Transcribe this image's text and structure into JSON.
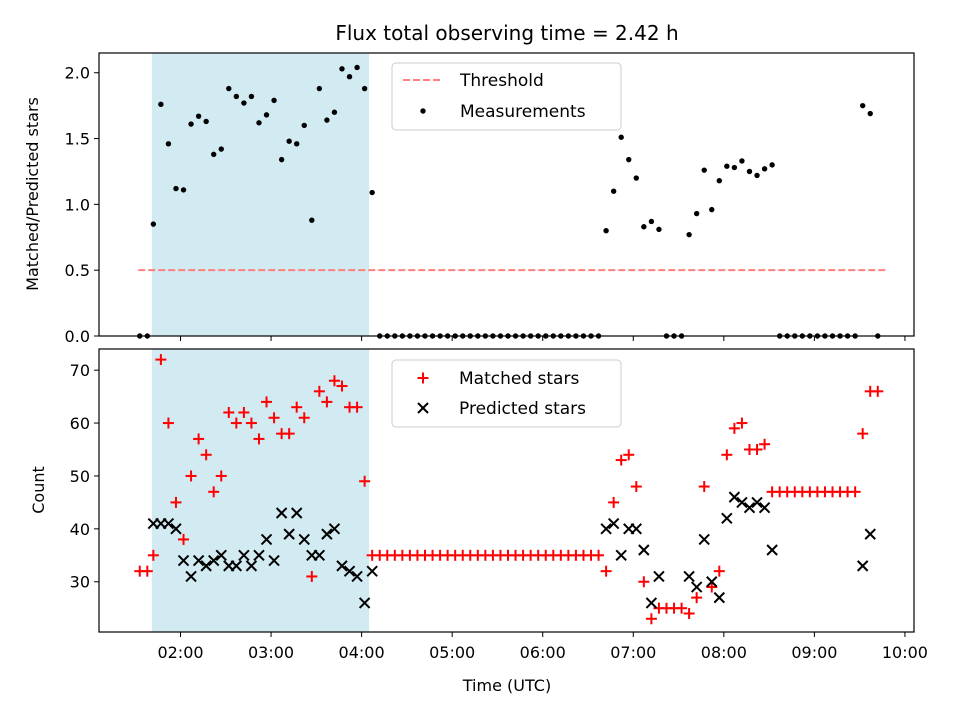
{
  "title": "Flux total observing time = 2.42 h",
  "xlabel": "Time (UTC)",
  "xticks": [
    "02:00",
    "03:00",
    "04:00",
    "05:00",
    "06:00",
    "07:00",
    "08:00",
    "09:00",
    "10:00"
  ],
  "colors": {
    "span": "#add8e6",
    "threshold": "#ff7f7f",
    "measurements": "#000000",
    "matched": "#ff0000",
    "predicted": "#000000"
  },
  "chart_data": [
    {
      "type": "scatter",
      "ylabel": "Matched/Predicted stars",
      "yticks": [
        "0.0",
        "0.5",
        "1.0",
        "1.5",
        "2.0"
      ],
      "xlim": [
        "01:06",
        "10:06"
      ],
      "ylim": [
        0,
        2.15
      ],
      "highlight_span": [
        "01:41",
        "04:05"
      ],
      "legend_position": "top-center",
      "legend": [
        "Threshold",
        "Measurements"
      ],
      "threshold": {
        "name": "Threshold",
        "style": "dashed",
        "x": [
          "01:32",
          "09:48"
        ],
        "y": 0.5
      },
      "series": [
        {
          "name": "Measurements",
          "points": [
            [
              "01:33",
              0
            ],
            [
              "01:38",
              0
            ],
            [
              "01:42",
              0.85
            ],
            [
              "01:47",
              1.76
            ],
            [
              "01:52",
              1.46
            ],
            [
              "01:57",
              1.12
            ],
            [
              "02:02",
              1.11
            ],
            [
              "02:07",
              1.61
            ],
            [
              "02:12",
              1.67
            ],
            [
              "02:17",
              1.63
            ],
            [
              "02:22",
              1.38
            ],
            [
              "02:27",
              1.42
            ],
            [
              "02:32",
              1.88
            ],
            [
              "02:37",
              1.82
            ],
            [
              "02:42",
              1.77
            ],
            [
              "02:47",
              1.82
            ],
            [
              "02:52",
              1.62
            ],
            [
              "02:57",
              1.68
            ],
            [
              "03:02",
              1.79
            ],
            [
              "03:07",
              1.34
            ],
            [
              "03:12",
              1.48
            ],
            [
              "03:17",
              1.46
            ],
            [
              "03:22",
              1.6
            ],
            [
              "03:27",
              0.88
            ],
            [
              "03:32",
              1.88
            ],
            [
              "03:37",
              1.64
            ],
            [
              "03:42",
              1.7
            ],
            [
              "03:47",
              2.03
            ],
            [
              "03:52",
              1.97
            ],
            [
              "03:57",
              2.04
            ],
            [
              "04:02",
              1.88
            ],
            [
              "04:07",
              1.09
            ],
            [
              "04:12",
              0
            ],
            [
              "04:17",
              0
            ],
            [
              "04:22",
              0
            ],
            [
              "04:27",
              0
            ],
            [
              "04:32",
              0
            ],
            [
              "04:37",
              0
            ],
            [
              "04:42",
              0
            ],
            [
              "04:47",
              0
            ],
            [
              "04:52",
              0
            ],
            [
              "04:57",
              0
            ],
            [
              "05:02",
              0
            ],
            [
              "05:07",
              0
            ],
            [
              "05:12",
              0
            ],
            [
              "05:17",
              0
            ],
            [
              "05:22",
              0
            ],
            [
              "05:27",
              0
            ],
            [
              "05:32",
              0
            ],
            [
              "05:37",
              0
            ],
            [
              "05:42",
              0
            ],
            [
              "05:47",
              0
            ],
            [
              "05:52",
              0
            ],
            [
              "05:57",
              0
            ],
            [
              "06:02",
              0
            ],
            [
              "06:07",
              0
            ],
            [
              "06:12",
              0
            ],
            [
              "06:17",
              0
            ],
            [
              "06:22",
              0
            ],
            [
              "06:27",
              0
            ],
            [
              "06:32",
              0
            ],
            [
              "06:37",
              0
            ],
            [
              "06:42",
              0.8
            ],
            [
              "06:47",
              1.1
            ],
            [
              "06:52",
              1.51
            ],
            [
              "06:57",
              1.34
            ],
            [
              "07:02",
              1.2
            ],
            [
              "07:07",
              0.83
            ],
            [
              "07:12",
              0.87
            ],
            [
              "07:17",
              0.81
            ],
            [
              "07:22",
              0
            ],
            [
              "07:27",
              0
            ],
            [
              "07:32",
              0
            ],
            [
              "07:37",
              0.77
            ],
            [
              "07:42",
              0.93
            ],
            [
              "07:47",
              1.26
            ],
            [
              "07:52",
              0.96
            ],
            [
              "07:57",
              1.18
            ],
            [
              "08:02",
              1.29
            ],
            [
              "08:07",
              1.28
            ],
            [
              "08:12",
              1.33
            ],
            [
              "08:17",
              1.25
            ],
            [
              "08:22",
              1.22
            ],
            [
              "08:27",
              1.27
            ],
            [
              "08:32",
              1.3
            ],
            [
              "08:37",
              0
            ],
            [
              "08:42",
              0
            ],
            [
              "08:47",
              0
            ],
            [
              "08:52",
              0
            ],
            [
              "08:57",
              0
            ],
            [
              "09:02",
              0
            ],
            [
              "09:07",
              0
            ],
            [
              "09:12",
              0
            ],
            [
              "09:17",
              0
            ],
            [
              "09:22",
              0
            ],
            [
              "09:27",
              0
            ],
            [
              "09:32",
              1.75
            ],
            [
              "09:37",
              1.69
            ],
            [
              "09:42",
              0
            ]
          ]
        }
      ]
    },
    {
      "type": "scatter",
      "ylabel": "Count",
      "yticks": [
        "30",
        "40",
        "50",
        "60",
        "70"
      ],
      "xlim": [
        "01:06",
        "10:06"
      ],
      "ylim": [
        20.5,
        74
      ],
      "highlight_span": [
        "01:41",
        "04:05"
      ],
      "legend_position": "top-center",
      "legend": [
        "Matched stars",
        "Predicted stars"
      ],
      "series": [
        {
          "name": "Matched stars",
          "marker": "+",
          "points": [
            [
              "01:33",
              32
            ],
            [
              "01:38",
              32
            ],
            [
              "01:42",
              35
            ],
            [
              "01:47",
              72
            ],
            [
              "01:52",
              60
            ],
            [
              "01:57",
              45
            ],
            [
              "02:02",
              38
            ],
            [
              "02:07",
              50
            ],
            [
              "02:12",
              57
            ],
            [
              "02:17",
              54
            ],
            [
              "02:22",
              47
            ],
            [
              "02:27",
              50
            ],
            [
              "02:32",
              62
            ],
            [
              "02:37",
              60
            ],
            [
              "02:42",
              62
            ],
            [
              "02:47",
              60
            ],
            [
              "02:52",
              57
            ],
            [
              "02:57",
              64
            ],
            [
              "03:02",
              61
            ],
            [
              "03:07",
              58
            ],
            [
              "03:12",
              58
            ],
            [
              "03:17",
              63
            ],
            [
              "03:22",
              61
            ],
            [
              "03:27",
              31
            ],
            [
              "03:32",
              66
            ],
            [
              "03:37",
              64
            ],
            [
              "03:42",
              68
            ],
            [
              "03:47",
              67
            ],
            [
              "03:52",
              63
            ],
            [
              "03:57",
              63
            ],
            [
              "04:02",
              49
            ],
            [
              "04:07",
              35
            ],
            [
              "04:12",
              35
            ],
            [
              "04:17",
              35
            ],
            [
              "04:22",
              35
            ],
            [
              "04:27",
              35
            ],
            [
              "04:32",
              35
            ],
            [
              "04:37",
              35
            ],
            [
              "04:42",
              35
            ],
            [
              "04:47",
              35
            ],
            [
              "04:52",
              35
            ],
            [
              "04:57",
              35
            ],
            [
              "05:02",
              35
            ],
            [
              "05:07",
              35
            ],
            [
              "05:12",
              35
            ],
            [
              "05:17",
              35
            ],
            [
              "05:22",
              35
            ],
            [
              "05:27",
              35
            ],
            [
              "05:32",
              35
            ],
            [
              "05:37",
              35
            ],
            [
              "05:42",
              35
            ],
            [
              "05:47",
              35
            ],
            [
              "05:52",
              35
            ],
            [
              "05:57",
              35
            ],
            [
              "06:02",
              35
            ],
            [
              "06:07",
              35
            ],
            [
              "06:12",
              35
            ],
            [
              "06:17",
              35
            ],
            [
              "06:22",
              35
            ],
            [
              "06:27",
              35
            ],
            [
              "06:32",
              35
            ],
            [
              "06:37",
              35
            ],
            [
              "06:42",
              32
            ],
            [
              "06:47",
              45
            ],
            [
              "06:52",
              53
            ],
            [
              "06:57",
              54
            ],
            [
              "07:02",
              48
            ],
            [
              "07:07",
              30
            ],
            [
              "07:12",
              23
            ],
            [
              "07:17",
              25
            ],
            [
              "07:22",
              25
            ],
            [
              "07:27",
              25
            ],
            [
              "07:32",
              25
            ],
            [
              "07:37",
              24
            ],
            [
              "07:42",
              27
            ],
            [
              "07:47",
              48
            ],
            [
              "07:52",
              29
            ],
            [
              "07:57",
              32
            ],
            [
              "08:02",
              54
            ],
            [
              "08:07",
              59
            ],
            [
              "08:12",
              60
            ],
            [
              "08:17",
              55
            ],
            [
              "08:22",
              55
            ],
            [
              "08:27",
              56
            ],
            [
              "08:32",
              47
            ],
            [
              "08:37",
              47
            ],
            [
              "08:42",
              47
            ],
            [
              "08:47",
              47
            ],
            [
              "08:52",
              47
            ],
            [
              "08:57",
              47
            ],
            [
              "09:02",
              47
            ],
            [
              "09:07",
              47
            ],
            [
              "09:12",
              47
            ],
            [
              "09:17",
              47
            ],
            [
              "09:22",
              47
            ],
            [
              "09:27",
              47
            ],
            [
              "09:32",
              58
            ],
            [
              "09:37",
              66
            ],
            [
              "09:42",
              66
            ]
          ]
        },
        {
          "name": "Predicted stars",
          "marker": "x",
          "points": [
            [
              "01:42",
              41
            ],
            [
              "01:47",
              41
            ],
            [
              "01:52",
              41
            ],
            [
              "01:57",
              40
            ],
            [
              "02:02",
              34
            ],
            [
              "02:07",
              31
            ],
            [
              "02:12",
              34
            ],
            [
              "02:17",
              33
            ],
            [
              "02:22",
              34
            ],
            [
              "02:27",
              35
            ],
            [
              "02:32",
              33
            ],
            [
              "02:37",
              33
            ],
            [
              "02:42",
              35
            ],
            [
              "02:47",
              33
            ],
            [
              "02:52",
              35
            ],
            [
              "02:57",
              38
            ],
            [
              "03:02",
              34
            ],
            [
              "03:07",
              43
            ],
            [
              "03:12",
              39
            ],
            [
              "03:17",
              43
            ],
            [
              "03:22",
              38
            ],
            [
              "03:27",
              35
            ],
            [
              "03:32",
              35
            ],
            [
              "03:37",
              39
            ],
            [
              "03:42",
              40
            ],
            [
              "03:47",
              33
            ],
            [
              "03:52",
              32
            ],
            [
              "03:57",
              31
            ],
            [
              "04:02",
              26
            ],
            [
              "04:07",
              32
            ],
            [
              "06:42",
              40
            ],
            [
              "06:47",
              41
            ],
            [
              "06:52",
              35
            ],
            [
              "06:57",
              40
            ],
            [
              "07:02",
              40
            ],
            [
              "07:07",
              36
            ],
            [
              "07:12",
              26
            ],
            [
              "07:17",
              31
            ],
            [
              "07:37",
              31
            ],
            [
              "07:42",
              29
            ],
            [
              "07:47",
              38
            ],
            [
              "07:52",
              30
            ],
            [
              "07:57",
              27
            ],
            [
              "08:02",
              42
            ],
            [
              "08:07",
              46
            ],
            [
              "08:12",
              45
            ],
            [
              "08:17",
              44
            ],
            [
              "08:22",
              45
            ],
            [
              "08:27",
              44
            ],
            [
              "08:32",
              36
            ],
            [
              "09:32",
              33
            ],
            [
              "09:37",
              39
            ]
          ]
        }
      ]
    }
  ]
}
